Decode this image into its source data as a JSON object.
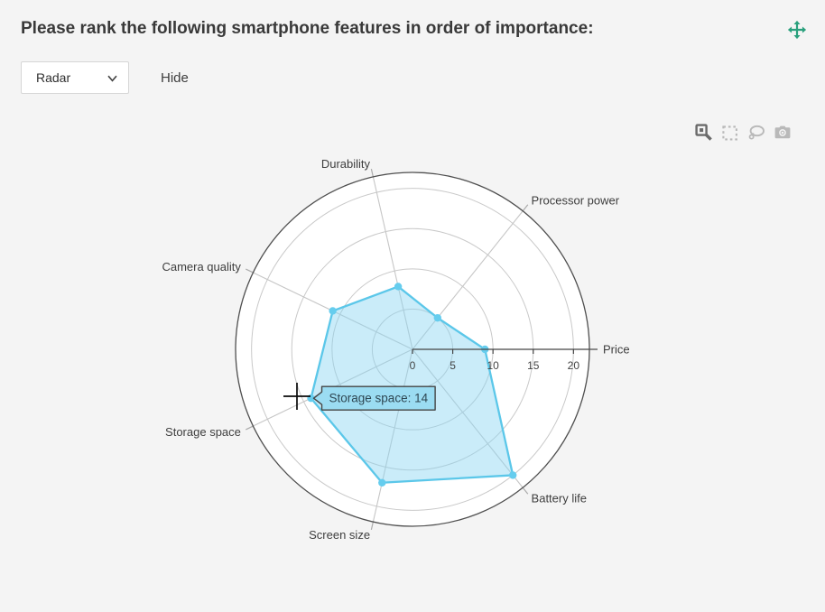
{
  "header": {
    "title": "Please rank the following smartphone features in order of importance:"
  },
  "controls": {
    "chart_type_value": "Radar",
    "hide_label": "Hide"
  },
  "toolbar": {
    "icons": [
      "zoom-icon",
      "box-select-icon",
      "lasso-select-icon",
      "camera-icon"
    ]
  },
  "chart_data": {
    "type": "radar",
    "categories": [
      "Price",
      "Processor power",
      "Durability",
      "Camera quality",
      "Storage space",
      "Screen size",
      "Battery life"
    ],
    "values": [
      9,
      5,
      8,
      11,
      14,
      17,
      20
    ],
    "radial_ticks": [
      0,
      5,
      10,
      15,
      20
    ],
    "range": [
      0,
      22
    ],
    "grid": true,
    "series_color": "#5bc7e9",
    "marker_color": "#66cdee",
    "fill_color": "rgba(137, 212, 241, 0.45)",
    "tooltip": {
      "category": "Storage space",
      "value": 14,
      "text": "Storage space: 14"
    }
  },
  "colors": {
    "accent": "#2aa07d",
    "background": "#f4f4f4",
    "plot_background": "#ffffff",
    "axis": "#444444",
    "outline": "#4f4f4f",
    "grid": "#c9c9c9",
    "spoke": "#c6c6c6",
    "text": "#3e3e3e",
    "tooltip_bg": "#9bdcf2",
    "tooltip_border": "#444444",
    "tooltip_text": "#2e4753",
    "icon_active": "#6a6a6a",
    "icon_inactive": "#b9b9b9"
  }
}
